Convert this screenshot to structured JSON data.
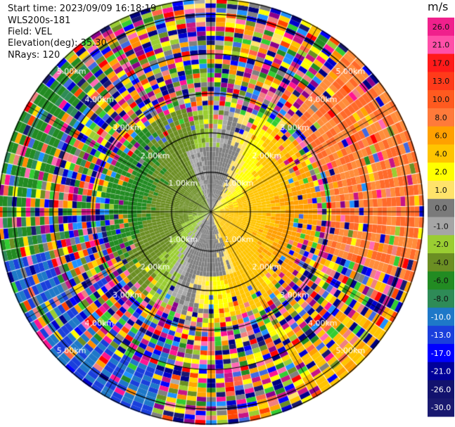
{
  "info": {
    "start_time": "Start time: 2023/09/09 16:18:19",
    "instrument": "WLS200s-181",
    "field": "Field: VEL",
    "elevation": "Elevation(deg): 35.30",
    "nrays": "NRays: 120"
  },
  "colorbar": {
    "unit": "m/s",
    "ticks": [
      "26.0",
      "21.0",
      "17.0",
      "13.0",
      "10.0",
      "8.0",
      "6.0",
      "4.0",
      "2.0",
      "1.0",
      "0.0",
      "-1.0",
      "-2.0",
      "-4.0",
      "-6.0",
      "-8.0",
      "-10.0",
      "-13.0",
      "-17.0",
      "-21.0",
      "-26.0",
      "-30.0"
    ],
    "colors": [
      "#f0208c",
      "#ff4fa8",
      "#ff1a1a",
      "#ff3a1a",
      "#ff5a1f",
      "#ff7a3a",
      "#ffa000",
      "#ffc400",
      "#ffff00",
      "#ffe36a",
      "#7a7a7a",
      "#a5a5a5",
      "#9acd32",
      "#6b8e23",
      "#228b22",
      "#2e8b57",
      "#1e78c8",
      "#1a3fdc",
      "#0000ff",
      "#00009a",
      "#12126e",
      "#191970"
    ]
  },
  "chart_data": {
    "type": "heatmap",
    "projection": "polar PPI",
    "field": "VEL",
    "units": "m/s",
    "nrays": 120,
    "elevation_deg": 35.3,
    "range_rings_km": [
      1.0,
      2.0,
      3.0,
      4.0,
      5.0
    ],
    "range_ring_labels": [
      "1.00km",
      "2.00km",
      "3.00km",
      "4.00km",
      "5.00km"
    ],
    "clim": [
      -30.0,
      26.0
    ],
    "structure": "Coherent velocity field near center: yellow/orange (positive) toward east and south-east, green/olive (negative) toward west and north-west, gray near zero in north and south sectors; outer rings mostly noisy multicolor. Far east sector orange/salmon, far south-west blue/green."
  }
}
